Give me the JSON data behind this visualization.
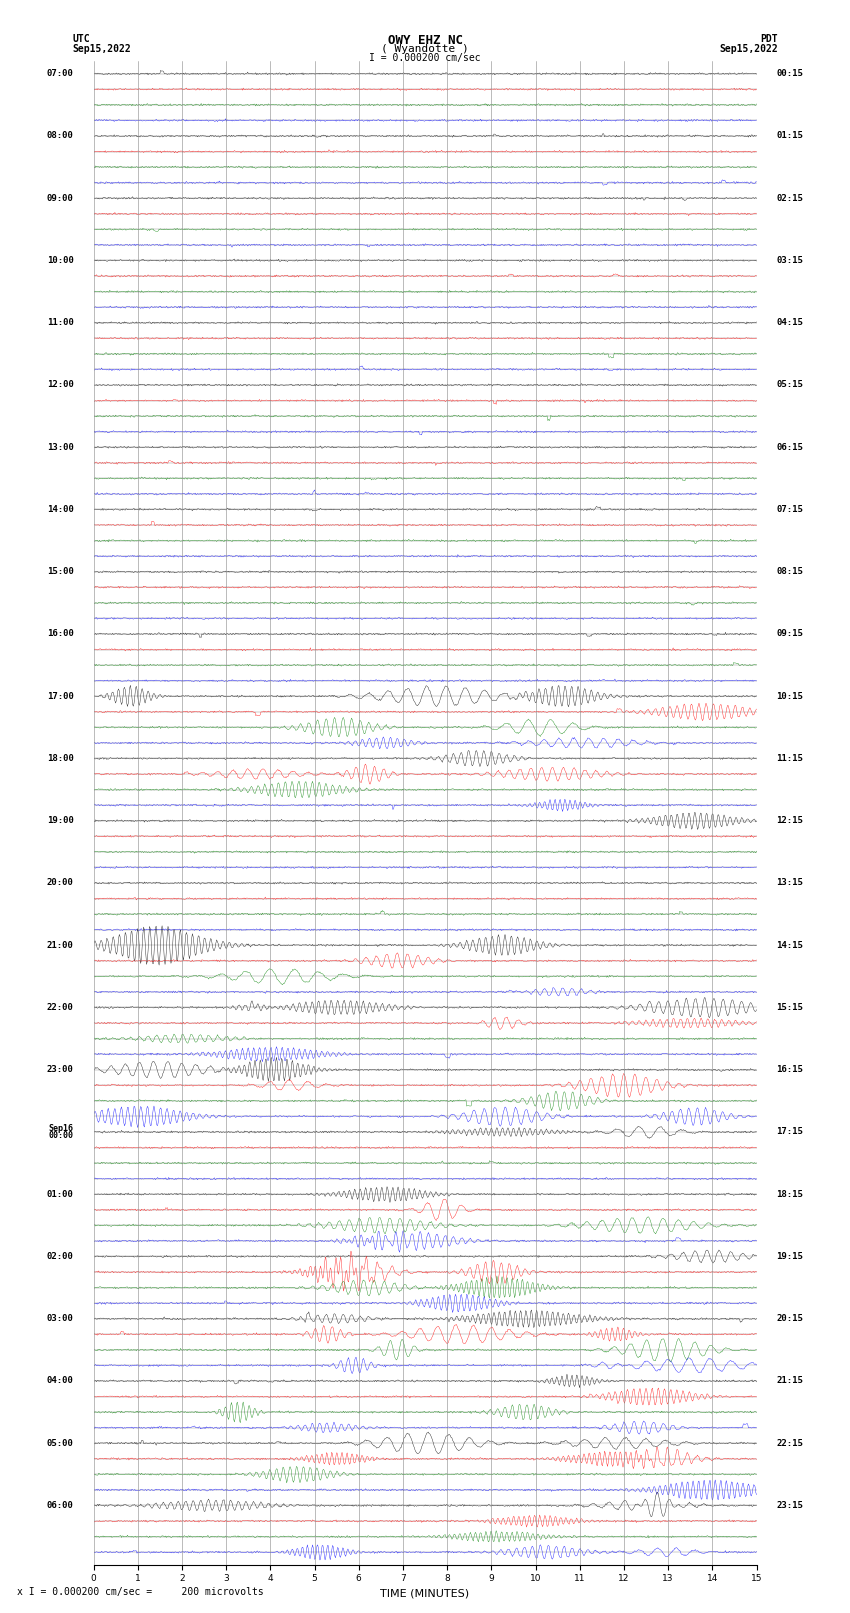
{
  "title_line1": "OWY EHZ NC",
  "title_line2": "( Wyandotte )",
  "scale_label": "I = 0.000200 cm/sec",
  "bottom_label": "x I = 0.000200 cm/sec =     200 microvolts",
  "xlabel": "TIME (MINUTES)",
  "left_times": [
    "07:00",
    "",
    "",
    "",
    "08:00",
    "",
    "",
    "",
    "09:00",
    "",
    "",
    "",
    "10:00",
    "",
    "",
    "",
    "11:00",
    "",
    "",
    "",
    "12:00",
    "",
    "",
    "",
    "13:00",
    "",
    "",
    "",
    "14:00",
    "",
    "",
    "",
    "15:00",
    "",
    "",
    "",
    "16:00",
    "",
    "",
    "",
    "17:00",
    "",
    "",
    "",
    "18:00",
    "",
    "",
    "",
    "19:00",
    "",
    "",
    "",
    "20:00",
    "",
    "",
    "",
    "21:00",
    "",
    "",
    "",
    "22:00",
    "",
    "",
    "",
    "23:00",
    "",
    "",
    "",
    "Sep16\n00:00",
    "",
    "",
    "",
    "01:00",
    "",
    "",
    "",
    "02:00",
    "",
    "",
    "",
    "03:00",
    "",
    "",
    "",
    "04:00",
    "",
    "",
    "",
    "05:00",
    "",
    "",
    "",
    "06:00",
    "",
    "",
    ""
  ],
  "right_times": [
    "00:15",
    "",
    "",
    "",
    "01:15",
    "",
    "",
    "",
    "02:15",
    "",
    "",
    "",
    "03:15",
    "",
    "",
    "",
    "04:15",
    "",
    "",
    "",
    "05:15",
    "",
    "",
    "",
    "06:15",
    "",
    "",
    "",
    "07:15",
    "",
    "",
    "",
    "08:15",
    "",
    "",
    "",
    "09:15",
    "",
    "",
    "",
    "10:15",
    "",
    "",
    "",
    "11:15",
    "",
    "",
    "",
    "12:15",
    "",
    "",
    "",
    "13:15",
    "",
    "",
    "",
    "14:15",
    "",
    "",
    "",
    "15:15",
    "",
    "",
    "",
    "16:15",
    "",
    "",
    "",
    "17:15",
    "",
    "",
    "",
    "18:15",
    "",
    "",
    "",
    "19:15",
    "",
    "",
    "",
    "20:15",
    "",
    "",
    "",
    "21:15",
    "",
    "",
    "",
    "22:15",
    "",
    "",
    "",
    "23:15",
    "",
    "",
    ""
  ],
  "trace_colors": [
    "black",
    "red",
    "green",
    "blue"
  ],
  "grid_color": "#888888",
  "n_traces": 96,
  "n_points": 900,
  "x_min": 0,
  "x_max": 15,
  "noise_scale": 0.08,
  "event_rows": [
    40,
    41,
    42,
    43,
    44,
    45,
    46,
    47,
    48,
    56,
    57,
    58,
    59,
    60,
    61,
    62,
    63,
    64,
    65,
    66,
    67,
    68,
    72,
    73,
    74,
    75,
    76,
    77,
    78,
    79,
    80,
    81,
    82,
    83,
    84,
    85,
    86,
    87,
    88,
    89,
    90,
    91,
    92,
    93,
    94,
    95
  ],
  "title_fontsize": 9,
  "label_fontsize": 7,
  "tick_fontsize": 6.5
}
